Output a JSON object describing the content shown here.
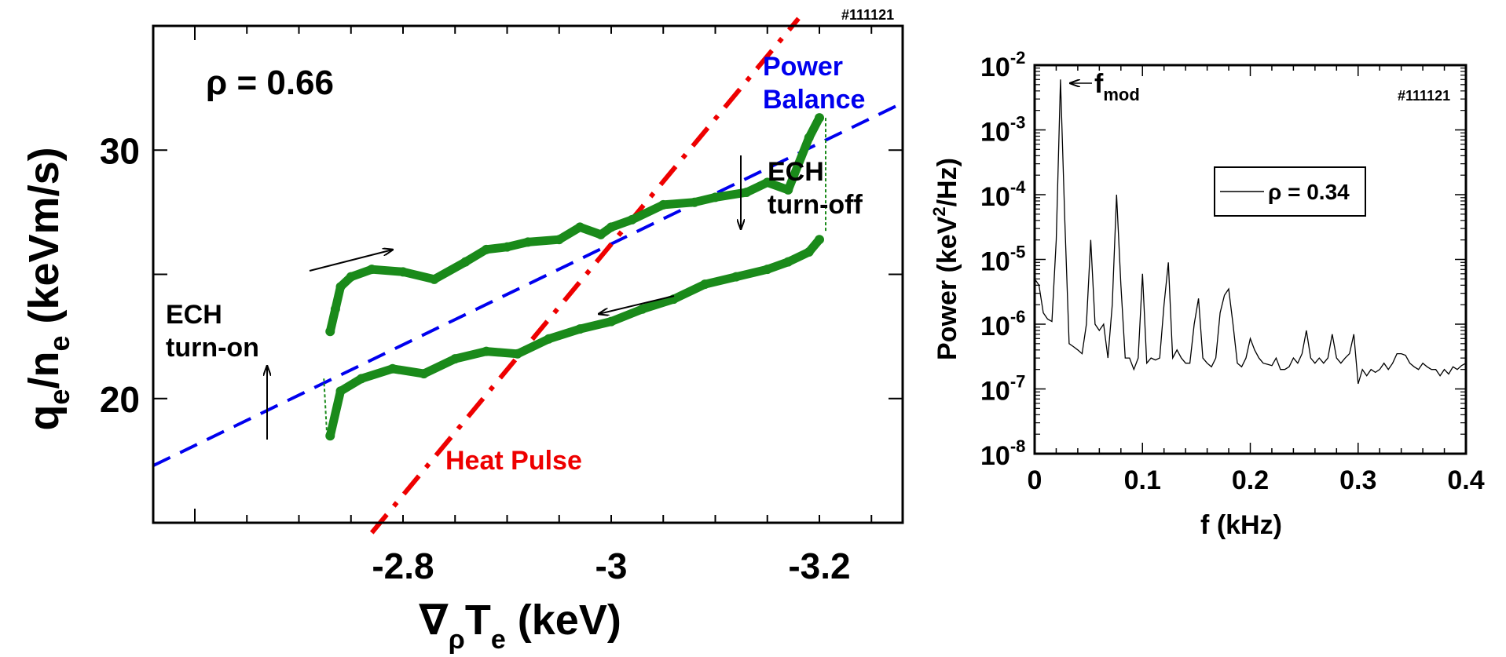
{
  "chart_data": [
    {
      "type": "line",
      "shot": "#111121",
      "xlabel": "∇ρTe (keV)",
      "xlabel_main": "∇",
      "xlabel_sub1": "ρ",
      "xlabel_T": "T",
      "xlabel_sub2": "e",
      "xlabel_unit": " (keV)",
      "ylabel_q": "q",
      "ylabel_sub1": "e",
      "ylabel_n": "/n",
      "ylabel_sub2": "e",
      "ylabel_unit": " (keV m/s)",
      "ylabel_unit_text": " (keVm/s)",
      "xlim": [
        -2.56,
        -3.28
      ],
      "ylim": [
        15,
        35
      ],
      "x_ticks": [
        -2.8,
        -3,
        -3.2
      ],
      "x_tick_labels": [
        "-2.8",
        "-3",
        "-3.2"
      ],
      "y_ticks": [
        20,
        30
      ],
      "y_tick_labels": [
        "20",
        "30"
      ],
      "rho_label": "ρ = 0.66",
      "annotations": {
        "power_balance_1": "Power",
        "power_balance_2": "Balance",
        "heat_pulse": "Heat Pulse",
        "ech_off_1": "ECH",
        "ech_off_2": "turn-off",
        "ech_on_1": "ECH",
        "ech_on_2": "turn-on"
      },
      "colors": {
        "data": "#1a8a1a",
        "power_balance": "#0000ee",
        "heat_pulse": "#ee0000"
      },
      "series": [
        {
          "kind": "data-upper",
          "x": [
            -2.73,
            -2.735,
            -2.74,
            -2.75,
            -2.77,
            -2.8,
            -2.83,
            -2.86,
            -2.88,
            -2.9,
            -2.92,
            -2.95,
            -2.97,
            -2.99,
            -3.0,
            -3.02,
            -3.05,
            -3.08,
            -3.1,
            -3.13,
            -3.15,
            -3.17,
            -3.19,
            -3.2
          ],
          "y": [
            22.7,
            23.6,
            24.5,
            24.9,
            25.2,
            25.1,
            24.8,
            25.5,
            26.0,
            26.1,
            26.3,
            26.4,
            26.9,
            26.6,
            26.9,
            27.2,
            27.8,
            27.9,
            28.1,
            28.3,
            28.7,
            28.4,
            30.5,
            31.3
          ]
        },
        {
          "kind": "data-lower",
          "x": [
            -2.73,
            -2.74,
            -2.76,
            -2.79,
            -2.82,
            -2.85,
            -2.88,
            -2.91,
            -2.94,
            -2.97,
            -3.0,
            -3.03,
            -3.06,
            -3.09,
            -3.12,
            -3.15,
            -3.17,
            -3.19,
            -3.2
          ],
          "y": [
            18.5,
            20.3,
            20.8,
            21.2,
            21.0,
            21.6,
            21.9,
            21.8,
            22.4,
            22.8,
            23.1,
            23.6,
            24.0,
            24.6,
            24.9,
            25.2,
            25.5,
            25.9,
            26.4
          ]
        },
        {
          "kind": "power-balance",
          "x": [
            -2.56,
            -3.28
          ],
          "y": [
            17.3,
            31.9
          ]
        },
        {
          "kind": "heat-pulse",
          "x": [
            -2.77,
            -3.18
          ],
          "y": [
            14.6,
            35.3
          ]
        }
      ]
    },
    {
      "type": "line",
      "shot": "#111121",
      "xlabel": "f (kHz)",
      "ylabel": "Power (keV²/Hz)",
      "ylabel_prefix": "Power (keV",
      "ylabel_sup": "2",
      "ylabel_suffix": "/Hz)",
      "y_scale": "log",
      "xlim": [
        0,
        0.4
      ],
      "ylim": [
        1e-08,
        0.01
      ],
      "x_ticks": [
        0,
        0.1,
        0.2,
        0.3,
        0.4
      ],
      "x_tick_labels": [
        "0",
        "0.1",
        "0.2",
        "0.3",
        "0.4"
      ],
      "y_tick_exponents": [
        -8,
        -7,
        -6,
        -5,
        -4,
        -3,
        -2
      ],
      "y_tick_base": "10",
      "y_tick_exp_labels": [
        "-8",
        "-7",
        "-6",
        "-5",
        "-4",
        "-3",
        "-2"
      ],
      "legend": "ρ = 0.34",
      "annotation_f": "f",
      "annotation_sub": "mod",
      "series": [
        {
          "name": "ρ = 0.34",
          "x": [
            0.0,
            0.004,
            0.008,
            0.012,
            0.016,
            0.02,
            0.024,
            0.028,
            0.032,
            0.036,
            0.04,
            0.044,
            0.048,
            0.052,
            0.056,
            0.06,
            0.064,
            0.068,
            0.072,
            0.076,
            0.08,
            0.084,
            0.088,
            0.092,
            0.096,
            0.1,
            0.104,
            0.108,
            0.112,
            0.116,
            0.12,
            0.124,
            0.128,
            0.132,
            0.136,
            0.14,
            0.144,
            0.148,
            0.152,
            0.156,
            0.16,
            0.164,
            0.168,
            0.172,
            0.176,
            0.18,
            0.184,
            0.188,
            0.192,
            0.196,
            0.2,
            0.204,
            0.208,
            0.212,
            0.216,
            0.22,
            0.224,
            0.228,
            0.232,
            0.236,
            0.24,
            0.244,
            0.248,
            0.252,
            0.256,
            0.26,
            0.264,
            0.268,
            0.272,
            0.276,
            0.28,
            0.284,
            0.288,
            0.292,
            0.296,
            0.3,
            0.304,
            0.308,
            0.312,
            0.316,
            0.32,
            0.324,
            0.328,
            0.332,
            0.336,
            0.34,
            0.344,
            0.348,
            0.352,
            0.356,
            0.36,
            0.364,
            0.368,
            0.372,
            0.376,
            0.38,
            0.384,
            0.388,
            0.392,
            0.396,
            0.4
          ],
          "y": [
            5e-06,
            4e-06,
            1.5e-06,
            1.2e-06,
            1.1e-06,
            2e-05,
            0.006,
            4e-05,
            5e-07,
            4.5e-07,
            4e-07,
            3.5e-07,
            1e-06,
            2e-05,
            1e-06,
            8e-07,
            1e-06,
            3e-07,
            2e-06,
            0.0001,
            4e-06,
            3e-07,
            3e-07,
            2e-07,
            3e-07,
            6e-06,
            2.5e-07,
            3e-07,
            2.8e-07,
            3e-07,
            2e-06,
            9e-06,
            3e-07,
            4e-07,
            3e-07,
            2.5e-07,
            2.5e-07,
            1e-06,
            2.5e-06,
            3e-07,
            2.5e-07,
            2.2e-07,
            3e-07,
            1.5e-06,
            2.8e-06,
            3.5e-06,
            1e-06,
            2.5e-07,
            2.2e-07,
            3e-07,
            6e-07,
            4e-07,
            3e-07,
            2.5e-07,
            2.4e-07,
            2.3e-07,
            3e-07,
            2e-07,
            2e-07,
            2.2e-07,
            3e-07,
            2.5e-07,
            3.5e-07,
            8e-07,
            3e-07,
            2.5e-07,
            3e-07,
            2.5e-07,
            3e-07,
            7e-07,
            3e-07,
            2.5e-07,
            3e-07,
            3.5e-07,
            7e-07,
            1.2e-07,
            2e-07,
            1.6e-07,
            2e-07,
            1.8e-07,
            2e-07,
            2.5e-07,
            2e-07,
            2.5e-07,
            3.5e-07,
            3.5e-07,
            3.3e-07,
            2.5e-07,
            2.2e-07,
            2e-07,
            2.5e-07,
            2.2e-07,
            2e-07,
            2e-07,
            1.6e-07,
            2e-07,
            1.7e-07,
            2.2e-07,
            2e-07,
            2.3e-07,
            2.5e-07
          ]
        }
      ]
    }
  ]
}
